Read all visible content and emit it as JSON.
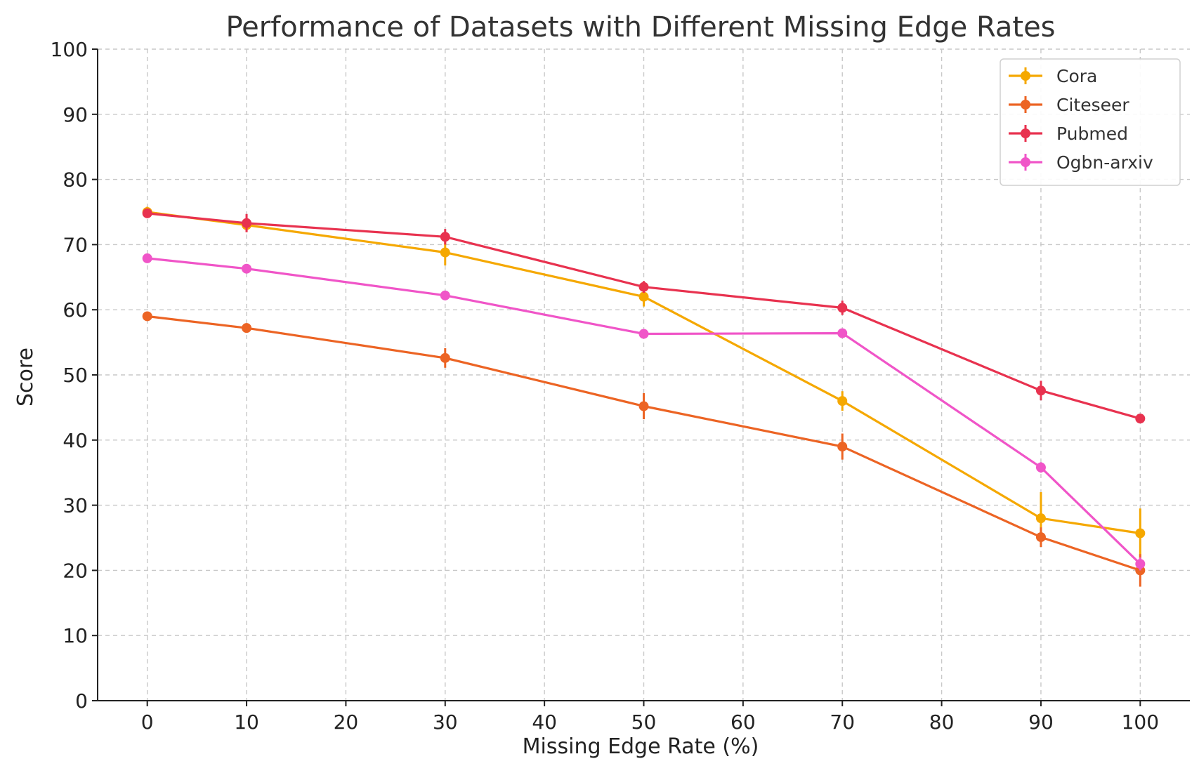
{
  "chart_data": {
    "type": "line",
    "title": "Performance of Datasets with Different Missing Edge Rates",
    "xlabel": "Missing Edge Rate (%)",
    "ylabel": "Score",
    "x": [
      0,
      10,
      30,
      50,
      70,
      90,
      100
    ],
    "xlim": [
      -5,
      105
    ],
    "ylim": [
      0,
      100
    ],
    "xticks": [
      0,
      10,
      20,
      30,
      40,
      50,
      60,
      70,
      80,
      90,
      100
    ],
    "yticks": [
      0,
      10,
      20,
      30,
      40,
      50,
      60,
      70,
      80,
      90,
      100
    ],
    "grid": true,
    "legend_position": "top-right",
    "series": [
      {
        "name": "Cora",
        "color": "#f5a800",
        "values": [
          75.0,
          73.0,
          68.8,
          62.0,
          46.0,
          28.0,
          25.7
        ],
        "errors": [
          0.8,
          1.0,
          2.0,
          1.5,
          1.5,
          4.0,
          3.8
        ]
      },
      {
        "name": "Citeseer",
        "color": "#ec6424",
        "values": [
          59.0,
          57.2,
          52.6,
          45.2,
          39.0,
          25.1,
          20.0
        ],
        "errors": [
          0.6,
          0.7,
          1.5,
          2.0,
          2.0,
          1.5,
          2.5
        ]
      },
      {
        "name": "Pubmed",
        "color": "#e8324f",
        "values": [
          74.8,
          73.3,
          71.2,
          63.5,
          60.3,
          47.6,
          43.3
        ],
        "errors": [
          0.5,
          1.4,
          1.2,
          0.9,
          1.1,
          1.5,
          0.5
        ]
      },
      {
        "name": "Ogbn-arxiv",
        "color": "#f055c8",
        "values": [
          67.9,
          66.3,
          62.2,
          56.3,
          56.4,
          35.8,
          21.0
        ],
        "errors": [
          0.4,
          0.4,
          0.5,
          0.5,
          0.6,
          0.8,
          1.0
        ]
      }
    ]
  }
}
